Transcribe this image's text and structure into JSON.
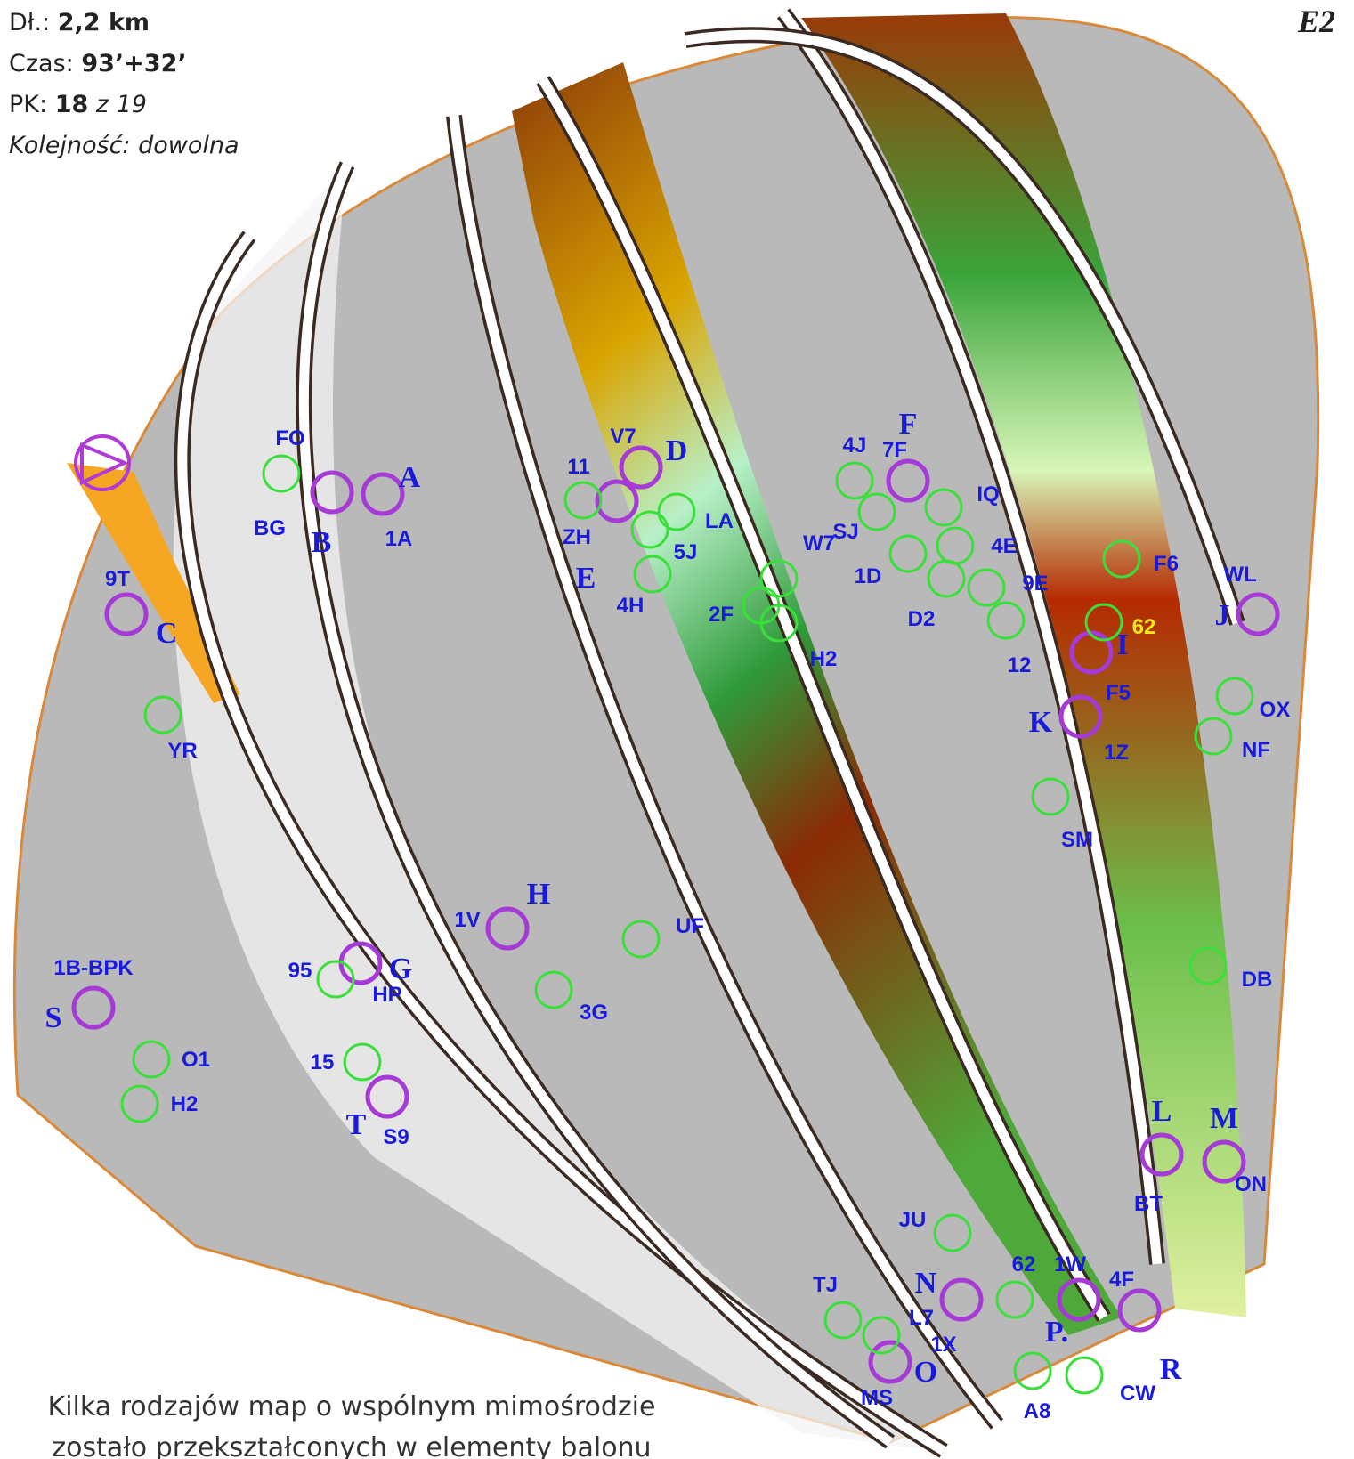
{
  "header": {
    "distance_label": "Dł.:",
    "distance": "2,2 km",
    "time_label": "Czas:",
    "time": "93’+32’",
    "controls_label": "PK:",
    "controls_found": "18",
    "controls_of": "z 19",
    "order": "Kolejność: dowolna",
    "map_id": "E2"
  },
  "controls": [
    {
      "letter": "A",
      "code": "1A"
    },
    {
      "letter": "B",
      "code": "BG"
    },
    {
      "letter": "C",
      "code": "9T"
    },
    {
      "letter": "D",
      "code": "V7"
    },
    {
      "letter": "E",
      "code": "ZH"
    },
    {
      "letter": "F",
      "code": "7F"
    },
    {
      "letter": "G",
      "code": "HP"
    },
    {
      "letter": "H",
      "code": "1V"
    },
    {
      "letter": "I",
      "code": "F5"
    },
    {
      "letter": "J",
      "code": "WL"
    },
    {
      "letter": "K",
      "code": "1Z"
    },
    {
      "letter": "L",
      "code": "BT"
    },
    {
      "letter": "M",
      "code": "ON"
    },
    {
      "letter": "N",
      "code": "1X"
    },
    {
      "letter": "O",
      "code": "MS"
    },
    {
      "letter": "P.",
      "code": "1W"
    },
    {
      "letter": "R",
      "code": "4F"
    },
    {
      "letter": "S",
      "code": "1B-BPK"
    },
    {
      "letter": "T",
      "code": "S9"
    }
  ],
  "decoys": [
    "FO",
    "11",
    "LA",
    "5J",
    "4H",
    "W7",
    "2F",
    "H2",
    "4J",
    "SJ",
    "IQ",
    "1D",
    "4E",
    "D2",
    "9E",
    "12",
    "F6",
    "62",
    "OX",
    "NF",
    "SM",
    "DB",
    "UF",
    "3G",
    "95",
    "15",
    "O1",
    "H2",
    "YR",
    "JU",
    "62",
    "TJ",
    "L7",
    "A8",
    "CW"
  ],
  "footer": [
    "Kilka rodzajów map o wspólnym mimośrodzie",
    "zostało przekształconych w elementy balonu"
  ]
}
